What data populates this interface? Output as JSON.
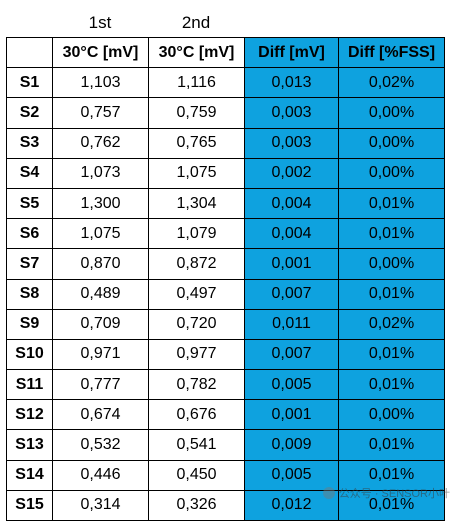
{
  "top_labels": {
    "first": "1st",
    "second": "2nd"
  },
  "colors": {
    "highlight": "#0ea2df"
  },
  "columns": [
    "",
    "30°C [mV]",
    "30°C [mV]",
    "Diff [mV]",
    "Diff [%FSS]"
  ],
  "rows": [
    {
      "label": "S1",
      "first": "1,103",
      "second": "1,116",
      "diff_mv": "0,013",
      "diff_fss": "0,02%"
    },
    {
      "label": "S2",
      "first": "0,757",
      "second": "0,759",
      "diff_mv": "0,003",
      "diff_fss": "0,00%"
    },
    {
      "label": "S3",
      "first": "0,762",
      "second": "0,765",
      "diff_mv": "0,003",
      "diff_fss": "0,00%"
    },
    {
      "label": "S4",
      "first": "1,073",
      "second": "1,075",
      "diff_mv": "0,002",
      "diff_fss": "0,00%"
    },
    {
      "label": "S5",
      "first": "1,300",
      "second": "1,304",
      "diff_mv": "0,004",
      "diff_fss": "0,01%"
    },
    {
      "label": "S6",
      "first": "1,075",
      "second": "1,079",
      "diff_mv": "0,004",
      "diff_fss": "0,01%"
    },
    {
      "label": "S7",
      "first": "0,870",
      "second": "0,872",
      "diff_mv": "0,001",
      "diff_fss": "0,00%"
    },
    {
      "label": "S8",
      "first": "0,489",
      "second": "0,497",
      "diff_mv": "0,007",
      "diff_fss": "0,01%"
    },
    {
      "label": "S9",
      "first": "0,709",
      "second": "0,720",
      "diff_mv": "0,011",
      "diff_fss": "0,02%"
    },
    {
      "label": "S10",
      "first": "0,971",
      "second": "0,977",
      "diff_mv": "0,007",
      "diff_fss": "0,01%"
    },
    {
      "label": "S11",
      "first": "0,777",
      "second": "0,782",
      "diff_mv": "0,005",
      "diff_fss": "0,01%"
    },
    {
      "label": "S12",
      "first": "0,674",
      "second": "0,676",
      "diff_mv": "0,001",
      "diff_fss": "0,00%"
    },
    {
      "label": "S13",
      "first": "0,532",
      "second": "0,541",
      "diff_mv": "0,009",
      "diff_fss": "0,01%"
    },
    {
      "label": "S14",
      "first": "0,446",
      "second": "0,450",
      "diff_mv": "0,005",
      "diff_fss": "0,01%"
    },
    {
      "label": "S15",
      "first": "0,314",
      "second": "0,326",
      "diff_mv": "0,012",
      "diff_fss": "0,01%"
    }
  ],
  "watermark": "公众号 · SENSOR小叶"
}
